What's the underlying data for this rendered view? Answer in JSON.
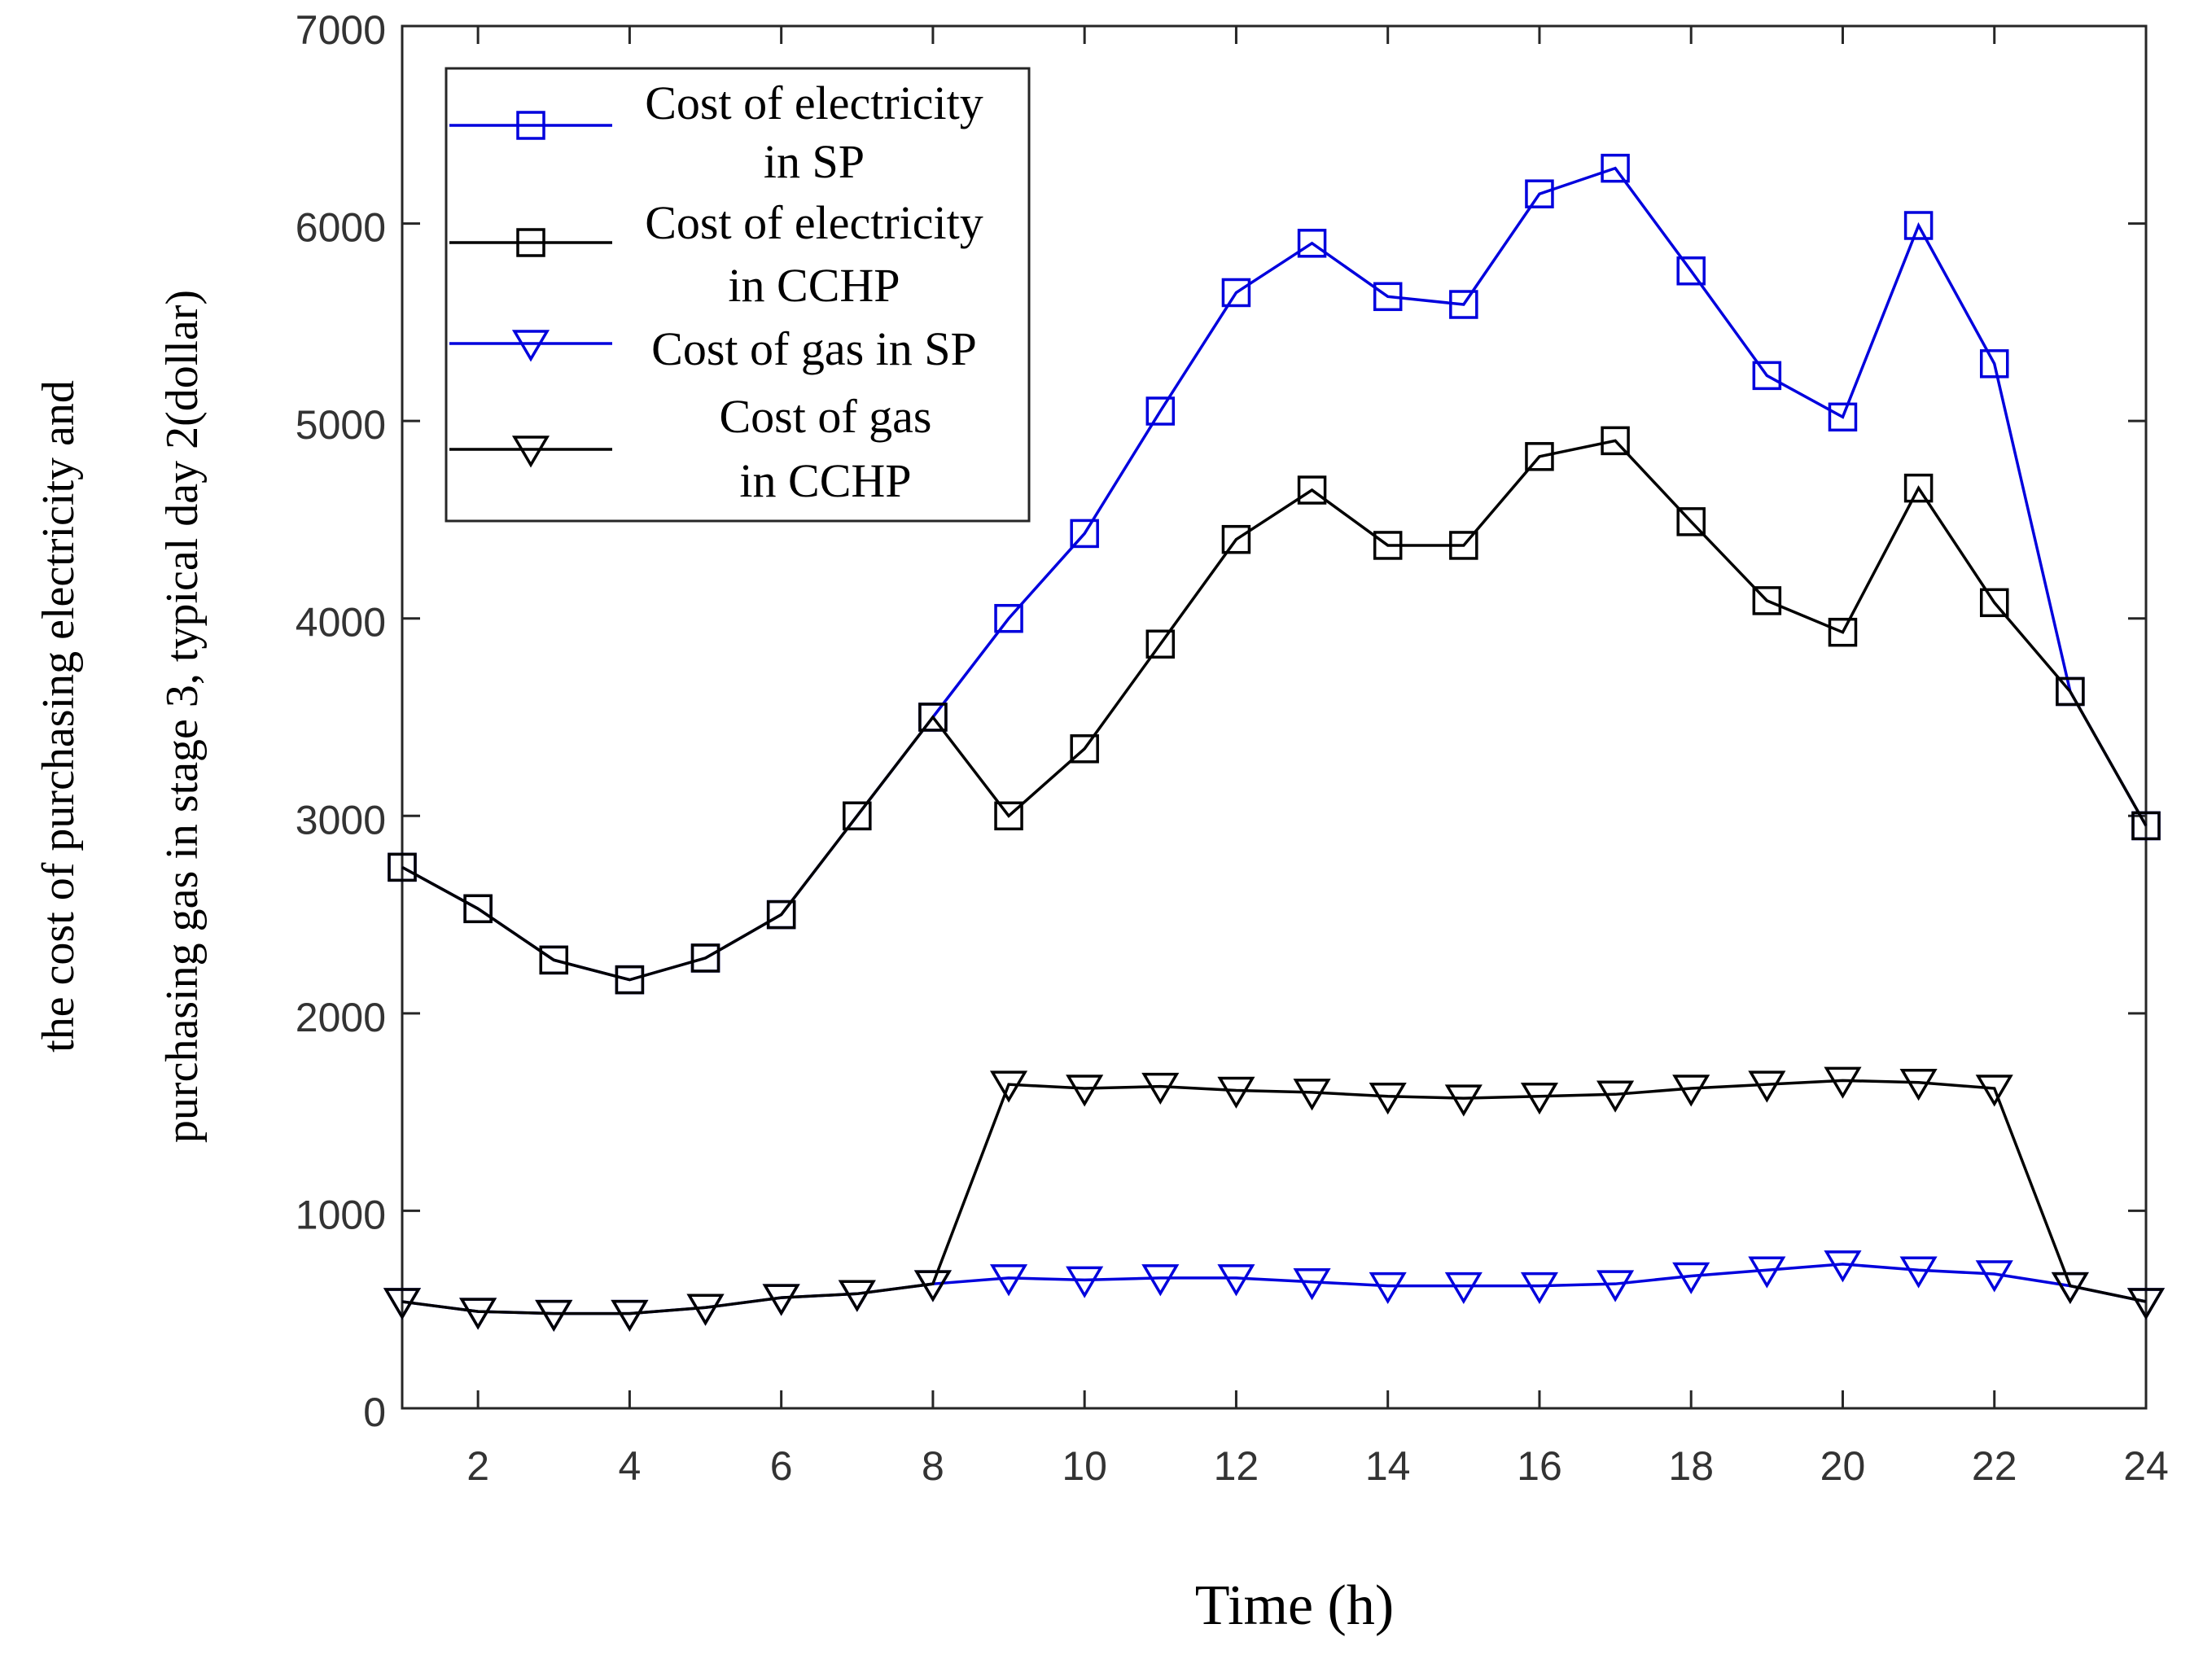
{
  "chart_data": {
    "type": "line",
    "title": "",
    "xlabel": "Time (h)",
    "ylabel_lines": [
      "the  cost  of purchasing electricity and",
      "purchasing gas  in stage 3, typical day 2(dollar)"
    ],
    "xlim": [
      1,
      24
    ],
    "ylim": [
      0,
      7000
    ],
    "x_ticks": [
      2,
      4,
      6,
      8,
      10,
      12,
      14,
      16,
      18,
      20,
      22,
      24
    ],
    "y_ticks": [
      0,
      1000,
      2000,
      3000,
      4000,
      5000,
      6000,
      7000
    ],
    "x": [
      1,
      2,
      3,
      4,
      5,
      6,
      7,
      8,
      9,
      10,
      11,
      12,
      13,
      14,
      15,
      16,
      17,
      18,
      19,
      20,
      21,
      22,
      23,
      24
    ],
    "legend_position": "top-left",
    "series": [
      {
        "name_lines": [
          "Cost of electricity",
          "in SP"
        ],
        "color": "#0000dd",
        "marker": "square",
        "values": [
          2740,
          2530,
          2270,
          2170,
          2280,
          2500,
          3000,
          3500,
          4000,
          4430,
          5050,
          5650,
          5900,
          5630,
          5590,
          6150,
          6280,
          5760,
          5230,
          5020,
          5990,
          5290,
          3630,
          2950
        ]
      },
      {
        "name_lines": [
          "Cost of electricity",
          "in CCHP"
        ],
        "color": "#000000",
        "marker": "square",
        "values": [
          2740,
          2530,
          2270,
          2170,
          2280,
          2500,
          3000,
          3500,
          3000,
          3340,
          3870,
          4400,
          4650,
          4370,
          4370,
          4820,
          4900,
          4490,
          4090,
          3930,
          4660,
          4080,
          3630,
          2950
        ]
      },
      {
        "name_lines": [
          "Cost of gas in SP"
        ],
        "color": "#0000dd",
        "marker": "triangle-down",
        "values": [
          540,
          490,
          480,
          480,
          510,
          560,
          580,
          630,
          660,
          650,
          660,
          660,
          640,
          620,
          620,
          620,
          630,
          670,
          700,
          730,
          700,
          680,
          620,
          540
        ]
      },
      {
        "name_lines": [
          "Cost of gas",
          "in CCHP"
        ],
        "color": "#000000",
        "marker": "triangle-down",
        "values": [
          540,
          490,
          480,
          480,
          510,
          560,
          580,
          630,
          1640,
          1620,
          1630,
          1610,
          1600,
          1580,
          1570,
          1580,
          1590,
          1620,
          1640,
          1660,
          1650,
          1620,
          620,
          540
        ]
      }
    ]
  }
}
